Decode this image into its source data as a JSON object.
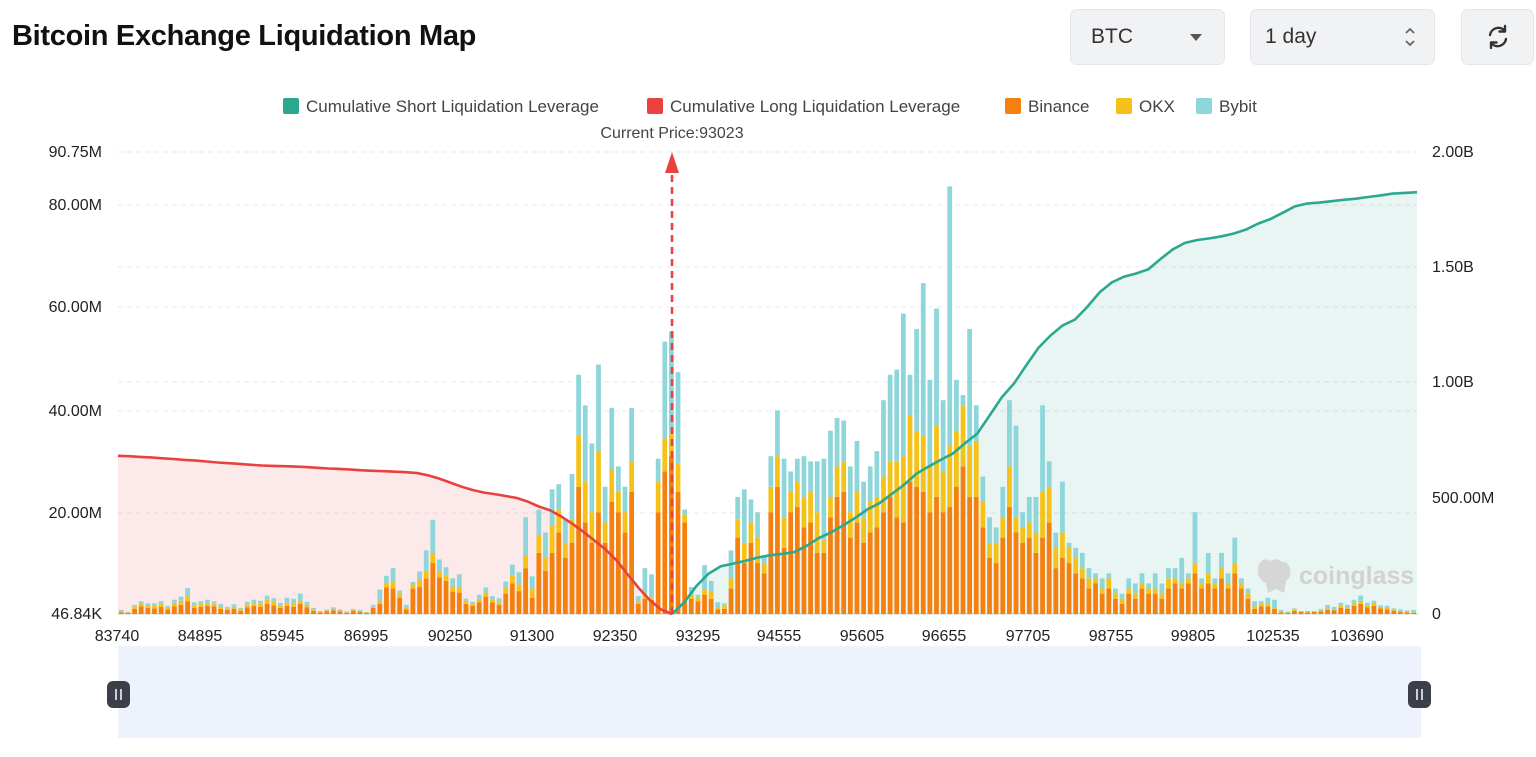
{
  "header": {
    "title": "Bitcoin Exchange Liquidation Map",
    "coin": "BTC",
    "period": "1 day"
  },
  "chart_data": {
    "type": "bar",
    "title": "Bitcoin Exchange Liquidation Map",
    "current_price_label": "Current Price:93023",
    "current_price": 93023,
    "watermark": "coinglass",
    "legend": [
      {
        "name": "Cumulative Short Liquidation Leverage",
        "color": "#2ba88f"
      },
      {
        "name": "Cumulative Long Liquidation Leverage",
        "color": "#e8413f"
      },
      {
        "name": "Binance",
        "color": "#f4800f"
      },
      {
        "name": "OKX",
        "color": "#f5c21a"
      },
      {
        "name": "Bybit",
        "color": "#8fd6da"
      }
    ],
    "x_tick_labels": [
      "83740",
      "84895",
      "85945",
      "86995",
      "90250",
      "91300",
      "92350",
      "93295",
      "94555",
      "95605",
      "96655",
      "97705",
      "98755",
      "99805",
      "102535",
      "103690"
    ],
    "y_left": {
      "ticks": [
        "46.84K",
        "20.00M",
        "40.00M",
        "60.00M",
        "80.00M",
        "90.75M"
      ],
      "min": 0,
      "max": 90.75,
      "unit": "M"
    },
    "y_right": {
      "ticks": [
        "0",
        "500.00M",
        "1.00B",
        "1.50B",
        "2.00B"
      ],
      "min": 0,
      "max": 2.0,
      "unit": "B"
    },
    "bars": [
      [
        0.3,
        0.3,
        0.2
      ],
      [
        0.2,
        0.1,
        0.1
      ],
      [
        1.0,
        0.5,
        0.3
      ],
      [
        1.5,
        0.6,
        0.4
      ],
      [
        1.2,
        0.5,
        0.4
      ],
      [
        1.1,
        0.6,
        0.4
      ],
      [
        1.4,
        0.6,
        0.5
      ],
      [
        0.9,
        0.4,
        0.3
      ],
      [
        1.5,
        0.7,
        0.6
      ],
      [
        1.8,
        0.8,
        0.8
      ],
      [
        2.5,
        1.0,
        1.6
      ],
      [
        1.2,
        0.5,
        0.6
      ],
      [
        1.4,
        0.6,
        0.5
      ],
      [
        1.6,
        0.6,
        0.6
      ],
      [
        1.5,
        0.5,
        0.5
      ],
      [
        1.0,
        0.4,
        0.6
      ],
      [
        0.8,
        0.3,
        0.3
      ],
      [
        1.0,
        0.4,
        0.5
      ],
      [
        0.6,
        0.3,
        0.3
      ],
      [
        1.3,
        0.6,
        0.5
      ],
      [
        1.6,
        0.6,
        0.6
      ],
      [
        1.4,
        0.6,
        0.6
      ],
      [
        2.0,
        0.8,
        0.8
      ],
      [
        1.7,
        0.7,
        0.7
      ],
      [
        1.2,
        0.5,
        0.5
      ],
      [
        1.6,
        0.6,
        1.0
      ],
      [
        1.4,
        0.7,
        0.9
      ],
      [
        2.0,
        0.6,
        1.4
      ],
      [
        1.3,
        0.5,
        0.6
      ],
      [
        0.6,
        0.3,
        0.3
      ],
      [
        0.3,
        0.2,
        0.1
      ],
      [
        0.5,
        0.2,
        0.2
      ],
      [
        0.7,
        0.3,
        0.3
      ],
      [
        0.5,
        0.2,
        0.2
      ],
      [
        0.2,
        0.1,
        0.2
      ],
      [
        0.6,
        0.2,
        0.2
      ],
      [
        0.4,
        0.2,
        0.2
      ],
      [
        0.2,
        0.1,
        0.1
      ],
      [
        1.2,
        0.2,
        0.4
      ],
      [
        2.0,
        0.6,
        2.2
      ],
      [
        5.2,
        0.8,
        1.5
      ],
      [
        5.0,
        1.5,
        2.5
      ],
      [
        3.2,
        0.8,
        0.6
      ],
      [
        0.9,
        0.4,
        0.5
      ],
      [
        5.0,
        0.8,
        0.5
      ],
      [
        5.3,
        1.6,
        1.5
      ],
      [
        7.0,
        1.5,
        4.0
      ],
      [
        10.0,
        2.0,
        6.5
      ],
      [
        7.2,
        1.2,
        2.3
      ],
      [
        6.5,
        1.0,
        1.7
      ],
      [
        4.4,
        1.0,
        1.6
      ],
      [
        4.2,
        1.0,
        2.6
      ],
      [
        2.0,
        0.6,
        0.4
      ],
      [
        1.6,
        0.5,
        0.3
      ],
      [
        2.3,
        0.6,
        0.9
      ],
      [
        3.4,
        0.8,
        1.0
      ],
      [
        2.3,
        0.6,
        0.6
      ],
      [
        1.8,
        0.5,
        0.8
      ],
      [
        4.0,
        1.2,
        1.2
      ],
      [
        6.0,
        1.5,
        2.2
      ],
      [
        4.5,
        1.3,
        2.4
      ],
      [
        9.0,
        2.5,
        7.5
      ],
      [
        3.2,
        1.8,
        2.4
      ],
      [
        12.0,
        3.5,
        5.0
      ],
      [
        8.5,
        2.5,
        5.0
      ],
      [
        12.0,
        5.5,
        7.0
      ],
      [
        16.0,
        4.5,
        5.0
      ],
      [
        11.0,
        3.0,
        4.5
      ],
      [
        14.0,
        4.5,
        9.0
      ],
      [
        25.0,
        10.0,
        12.0
      ],
      [
        18.0,
        8.0,
        15.0
      ],
      [
        14.0,
        6.0,
        13.5
      ],
      [
        20.0,
        12.0,
        17.0
      ],
      [
        14.0,
        4.0,
        7.0
      ],
      [
        22.0,
        6.5,
        12.0
      ],
      [
        20.0,
        4.0,
        5.0
      ],
      [
        16.0,
        4.0,
        5.0
      ],
      [
        24.0,
        6.0,
        10.5
      ],
      [
        2.0,
        0.5,
        1.0
      ],
      [
        3.0,
        1.0,
        5.0
      ],
      [
        2.8,
        0.5,
        4.5
      ],
      [
        20.0,
        6.0,
        4.5
      ],
      [
        28.0,
        6.5,
        19.0
      ],
      [
        31.0,
        4.5,
        20.0
      ],
      [
        24.0,
        5.5,
        18.0
      ],
      [
        18.0,
        1.5,
        1.0
      ],
      [
        3.0,
        0.8,
        1.5
      ],
      [
        2.5,
        0.8,
        0.5
      ],
      [
        3.8,
        1.0,
        4.8
      ],
      [
        3.0,
        1.5,
        2.0
      ],
      [
        0.9,
        0.4,
        1.0
      ],
      [
        1.0,
        0.6,
        0.5
      ],
      [
        5.0,
        2.0,
        5.5
      ],
      [
        15.0,
        3.5,
        4.5
      ],
      [
        10.0,
        4.0,
        10.5
      ],
      [
        14.0,
        4.0,
        4.5
      ],
      [
        10.0,
        5.0,
        5.0
      ],
      [
        8.0,
        2.0,
        1.5
      ],
      [
        20.0,
        5.0,
        6.0
      ],
      [
        25.0,
        6.0,
        9.0
      ],
      [
        13.0,
        6.0,
        11.5
      ],
      [
        20.0,
        4.0,
        4.0
      ],
      [
        21.0,
        5.0,
        4.5
      ],
      [
        17.0,
        6.0,
        8.0
      ],
      [
        18.0,
        6.0,
        6.0
      ],
      [
        12.0,
        8.0,
        10.0
      ],
      [
        12.0,
        2.5,
        16.0
      ],
      [
        19.0,
        4.0,
        13.0
      ],
      [
        23.0,
        6.0,
        9.5
      ],
      [
        24.0,
        6.0,
        8.0
      ],
      [
        15.0,
        5.0,
        9.0
      ],
      [
        18.0,
        6.0,
        10.0
      ],
      [
        14.0,
        5.0,
        7.0
      ],
      [
        16.0,
        6.0,
        7.0
      ],
      [
        17.0,
        6.0,
        9.0
      ],
      [
        20.0,
        7.0,
        15.0
      ],
      [
        23.0,
        7.0,
        17.0
      ],
      [
        19.0,
        11.0,
        18.0
      ],
      [
        18.0,
        13.0,
        28.0
      ],
      [
        26.0,
        13.0,
        8.0
      ],
      [
        25.0,
        11.0,
        20.0
      ],
      [
        24.0,
        11.0,
        30.0
      ],
      [
        20.0,
        9.0,
        17.0
      ],
      [
        23.0,
        14.0,
        23.0
      ],
      [
        20.0,
        8.0,
        14.0
      ],
      [
        21.0,
        12.0,
        51.0
      ],
      [
        25.0,
        11.0,
        10.0
      ],
      [
        29.0,
        12.0,
        2.0
      ],
      [
        23.0,
        10.0,
        23.0
      ],
      [
        23.0,
        11.0,
        7.0
      ],
      [
        17.0,
        5.0,
        5.0
      ],
      [
        11.0,
        3.0,
        5.0
      ],
      [
        10.0,
        4.0,
        3.0
      ],
      [
        15.0,
        4.0,
        6.0
      ],
      [
        21.0,
        8.0,
        13.0
      ],
      [
        16.0,
        3.0,
        18.0
      ],
      [
        14.0,
        3.0,
        3.0
      ],
      [
        15.0,
        3.0,
        5.0
      ],
      [
        12.0,
        4.0,
        7.0
      ],
      [
        15.0,
        9.0,
        17.0
      ],
      [
        18.0,
        7.0,
        5.0
      ],
      [
        9.0,
        4.0,
        3.0
      ],
      [
        11.0,
        5.0,
        10.0
      ],
      [
        10.0,
        3.0,
        1.0
      ],
      [
        8.0,
        3.0,
        2.0
      ],
      [
        7.0,
        2.0,
        3.0
      ],
      [
        5.0,
        2.0,
        2.0
      ],
      [
        6.0,
        1.0,
        1.0
      ],
      [
        4.0,
        1.0,
        2.0
      ],
      [
        5.0,
        2.0,
        1.0
      ],
      [
        3.0,
        1.0,
        1.0
      ],
      [
        2.0,
        1.0,
        1.0
      ],
      [
        4.0,
        1.0,
        2.0
      ],
      [
        3.0,
        1.0,
        2.0
      ],
      [
        5.0,
        1.0,
        2.0
      ],
      [
        4.0,
        1.0,
        1.0
      ],
      [
        4.0,
        1.0,
        3.0
      ],
      [
        3.0,
        1.0,
        2.0
      ],
      [
        5.0,
        2.0,
        2.0
      ],
      [
        6.0,
        1.0,
        2.0
      ],
      [
        5.0,
        1.0,
        5.0
      ],
      [
        6.0,
        1.0,
        1.0
      ],
      [
        8.0,
        2.0,
        10.0
      ],
      [
        5.0,
        1.0,
        1.0
      ],
      [
        6.0,
        2.0,
        4.0
      ],
      [
        5.0,
        1.0,
        1.0
      ],
      [
        7.0,
        2.0,
        3.0
      ],
      [
        5.0,
        1.0,
        2.0
      ],
      [
        8.0,
        2.0,
        5.0
      ],
      [
        5.0,
        1.0,
        1.0
      ],
      [
        3.0,
        1.0,
        1.0
      ],
      [
        1.0,
        0.5,
        1.0
      ],
      [
        1.5,
        0.5,
        0.5
      ],
      [
        1.5,
        0.5,
        1.2
      ],
      [
        1.0,
        0.3,
        1.5
      ],
      [
        0.3,
        0.2,
        0.3
      ],
      [
        0.2,
        0.1,
        0.2
      ],
      [
        0.6,
        0.2,
        0.3
      ],
      [
        0.4,
        0.1,
        0.1
      ],
      [
        0.3,
        0.1,
        0.2
      ],
      [
        0.4,
        0.1,
        0.1
      ],
      [
        0.5,
        0.2,
        0.3
      ],
      [
        0.8,
        0.3,
        0.7
      ],
      [
        0.7,
        0.3,
        0.4
      ],
      [
        1.2,
        0.5,
        0.5
      ],
      [
        1.0,
        0.3,
        0.5
      ],
      [
        1.6,
        0.6,
        0.6
      ],
      [
        2.0,
        0.6,
        1.0
      ],
      [
        1.3,
        0.4,
        0.5
      ],
      [
        1.6,
        0.6,
        0.4
      ],
      [
        1.1,
        0.3,
        0.3
      ],
      [
        0.9,
        0.3,
        0.4
      ],
      [
        0.6,
        0.2,
        0.3
      ],
      [
        0.4,
        0.2,
        0.3
      ],
      [
        0.3,
        0.1,
        0.3
      ],
      [
        0.2,
        0.1,
        0.5
      ]
    ],
    "long_cumulative_B": [
      0.685,
      0.683,
      0.68,
      0.678,
      0.674,
      0.671,
      0.667,
      0.664,
      0.66,
      0.656,
      0.653,
      0.65,
      0.646,
      0.643,
      0.641,
      0.64,
      0.638,
      0.636,
      0.633,
      0.63,
      0.628,
      0.625,
      0.622,
      0.62,
      0.618,
      0.616,
      0.614,
      0.61,
      0.6,
      0.586,
      0.569,
      0.551,
      0.537,
      0.526,
      0.519,
      0.511,
      0.502,
      0.486,
      0.465,
      0.449,
      0.422,
      0.391,
      0.356,
      0.318,
      0.28,
      0.232,
      0.171,
      0.112,
      0.06,
      0.02,
      0.0
    ],
    "short_cumulative_B": [
      0.0,
      0.05,
      0.121,
      0.175,
      0.207,
      0.218,
      0.23,
      0.244,
      0.254,
      0.26,
      0.268,
      0.294,
      0.328,
      0.353,
      0.383,
      0.416,
      0.453,
      0.48,
      0.52,
      0.559,
      0.607,
      0.638,
      0.667,
      0.695,
      0.74,
      0.781,
      0.859,
      0.938,
      0.998,
      1.076,
      1.152,
      1.206,
      1.25,
      1.275,
      1.329,
      1.392,
      1.435,
      1.46,
      1.474,
      1.492,
      1.537,
      1.578,
      1.607,
      1.619,
      1.626,
      1.635,
      1.647,
      1.664,
      1.69,
      1.71,
      1.737,
      1.765,
      1.777,
      1.781,
      1.787,
      1.793,
      1.798,
      1.805,
      1.812,
      1.82,
      1.823,
      1.826
    ]
  }
}
